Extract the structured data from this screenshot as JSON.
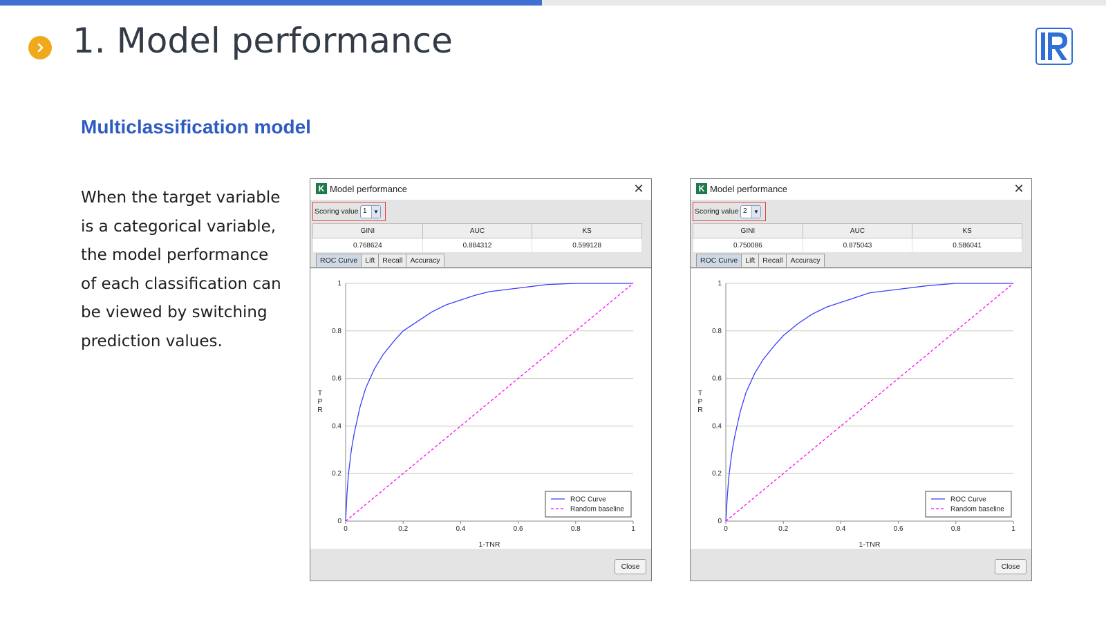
{
  "header": {
    "title": "1. Model performance",
    "progress_fraction": 0.49,
    "progress_color": "#3f6fd1",
    "bullet_icon": "chevron-right-icon",
    "logo_icon": "r-logo-icon"
  },
  "subheading": "Multiclassification model",
  "description_lines": [
    "When the target variable",
    "is a categorical variable,",
    "the model performance",
    "of each classification can",
    "be  viewed by switching",
    "prediction values."
  ],
  "dialogs": [
    {
      "title": "Model performance",
      "scoring_label": "Scoring value",
      "scoring_value": "1",
      "metrics": {
        "headers": [
          "GINI",
          "AUC",
          "KS"
        ],
        "values": [
          "0.768624",
          "0.884312",
          "0.599128"
        ]
      },
      "tabs": [
        "ROC Curve",
        "Lift",
        "Recall",
        "Accuracy"
      ],
      "active_tab": "ROC Curve",
      "close_label": "Close"
    },
    {
      "title": "Model performance",
      "scoring_label": "Scoring value",
      "scoring_value": "2",
      "metrics": {
        "headers": [
          "GINI",
          "AUC",
          "KS"
        ],
        "values": [
          "0.750086",
          "0.875043",
          "0.586041"
        ]
      },
      "tabs": [
        "ROC Curve",
        "Lift",
        "Recall",
        "Accuracy"
      ],
      "active_tab": "ROC Curve",
      "close_label": "Close"
    }
  ],
  "chart_data": [
    {
      "type": "line",
      "xlabel": "1-TNR",
      "ylabel": "TPR",
      "xlim": [
        0,
        1
      ],
      "ylim": [
        0,
        1
      ],
      "xticks": [
        "0",
        "0.2",
        "0.4",
        "0.6",
        "0.8",
        "1"
      ],
      "yticks": [
        "0",
        "0.2",
        "0.4",
        "0.6",
        "0.8",
        "1"
      ],
      "grid": "horizontal",
      "legend": "bottom-right",
      "series": [
        {
          "name": "ROC Curve",
          "color": "#3b3bff",
          "style": "solid",
          "x": [
            0,
            0.005,
            0.01,
            0.02,
            0.03,
            0.05,
            0.07,
            0.1,
            0.13,
            0.17,
            0.2,
            0.25,
            0.3,
            0.35,
            0.4,
            0.45,
            0.5,
            0.6,
            0.7,
            0.8,
            0.9,
            1.0
          ],
          "y": [
            0,
            0.12,
            0.2,
            0.3,
            0.37,
            0.48,
            0.56,
            0.64,
            0.7,
            0.76,
            0.8,
            0.84,
            0.88,
            0.91,
            0.93,
            0.95,
            0.965,
            0.98,
            0.995,
            1.0,
            1.0,
            1.0
          ]
        },
        {
          "name": "Random baseline",
          "color": "#ff00ff",
          "style": "dashed",
          "x": [
            0,
            1
          ],
          "y": [
            0,
            1
          ]
        }
      ]
    },
    {
      "type": "line",
      "xlabel": "1-TNR",
      "ylabel": "TPR",
      "xlim": [
        0,
        1
      ],
      "ylim": [
        0,
        1
      ],
      "xticks": [
        "0",
        "0.2",
        "0.4",
        "0.6",
        "0.8",
        "1"
      ],
      "yticks": [
        "0",
        "0.2",
        "0.4",
        "0.6",
        "0.8",
        "1"
      ],
      "grid": "horizontal",
      "legend": "bottom-right",
      "series": [
        {
          "name": "ROC Curve",
          "color": "#3b3bff",
          "style": "solid",
          "x": [
            0,
            0.005,
            0.01,
            0.02,
            0.03,
            0.05,
            0.07,
            0.1,
            0.13,
            0.17,
            0.2,
            0.25,
            0.3,
            0.35,
            0.4,
            0.45,
            0.5,
            0.6,
            0.7,
            0.8,
            0.9,
            1.0
          ],
          "y": [
            0,
            0.1,
            0.18,
            0.28,
            0.35,
            0.46,
            0.54,
            0.62,
            0.68,
            0.74,
            0.78,
            0.83,
            0.87,
            0.9,
            0.92,
            0.94,
            0.96,
            0.975,
            0.99,
            1.0,
            1.0,
            1.0
          ]
        },
        {
          "name": "Random baseline",
          "color": "#ff00ff",
          "style": "dashed",
          "x": [
            0,
            1
          ],
          "y": [
            0,
            1
          ]
        }
      ]
    }
  ]
}
